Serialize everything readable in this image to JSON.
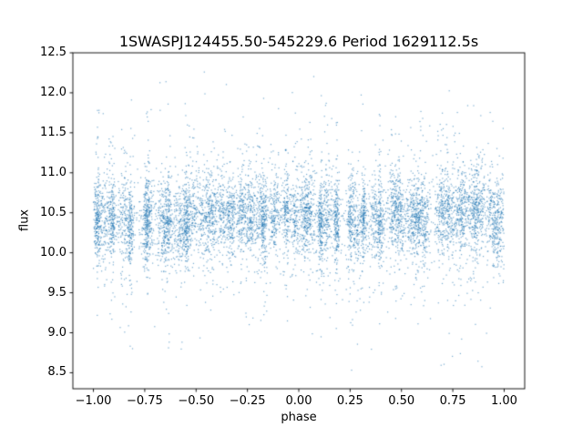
{
  "chart_data": {
    "type": "scatter",
    "title": "1SWASPJ124455.50-545229.6 Period 1629112.5s",
    "xlabel": "phase",
    "ylabel": "flux",
    "xlim": [
      -1.1,
      1.1
    ],
    "ylim": [
      8.3,
      12.5
    ],
    "xticks": [
      -1.0,
      -0.75,
      -0.5,
      -0.25,
      0.0,
      0.25,
      0.5,
      0.75,
      1.0
    ],
    "xtick_labels": [
      "−1.00",
      "−0.75",
      "−0.50",
      "−0.25",
      "0.00",
      "0.25",
      "0.50",
      "0.75",
      "1.00"
    ],
    "yticks": [
      8.5,
      9.0,
      9.5,
      10.0,
      10.5,
      11.0,
      11.5,
      12.0,
      12.5
    ],
    "ytick_labels": [
      "8.5",
      "9.0",
      "9.5",
      "10.0",
      "10.5",
      "11.0",
      "11.5",
      "12.0",
      "12.5"
    ],
    "grid": false,
    "legend": "none",
    "background_color": "#ffffff",
    "spine_color": "#000000",
    "marker": {
      "color": "#1f77b4",
      "size": 1.2,
      "alpha": 0.6
    },
    "description": "Folded photometric light curve: dense cloud of ~9000 small blue points in vertical night-by-night stripes; flux core ~10.0-11.0 centered near 10.45, sparse tails 9.0-12.0, rare outliers from 8.5 up to 12.3, slight brightening near phase -0.25 and +0.75",
    "scatter_generation": {
      "seed": 77,
      "n_points": 9000,
      "phase_min": -1.0,
      "phase_max": 1.0,
      "flux_mean": 10.45,
      "flux_core_std": 0.24,
      "flux_tail_std": 0.55,
      "tail_fraction": 0.25,
      "modulation_amplitude": 0.08,
      "modulation_phase_of_max": 0.75,
      "outlier_fraction": 0.008,
      "outlier_flux_min": 8.5,
      "outlier_flux_max": 12.3,
      "stripe_count": 46,
      "stripe_fraction": 0.82,
      "stripe_width_min": 0.006,
      "stripe_width_max": 0.022,
      "stripe_offset_std": 0.06
    }
  }
}
